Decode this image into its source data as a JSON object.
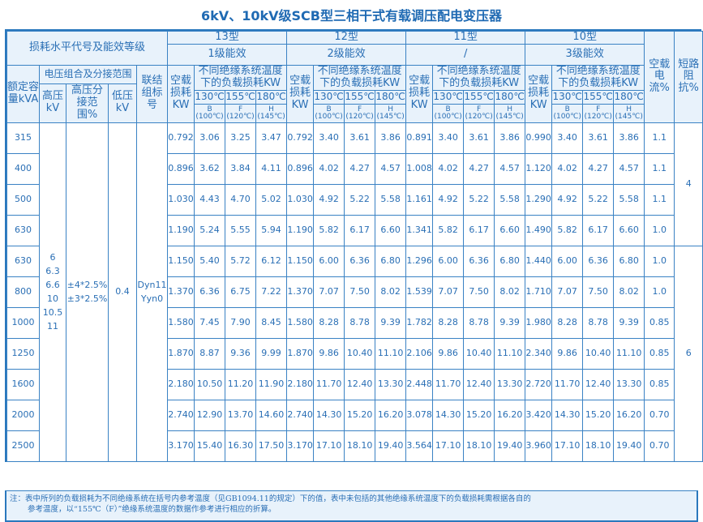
{
  "title": "6kV、10kV级SCB型三相干式有载调压配电变压器",
  "header": {
    "loss_level": "损耗水平代号及能效等级",
    "voltage_group": "电压组合及分接范围",
    "rated_capacity": "额定容量kVA",
    "hv": "高压kV",
    "tap_range": "高压分接范围%",
    "lv": "低压kV",
    "vector_group": "联结组标号",
    "no_load_loss": "空载损耗KW",
    "load_loss": "不同绝缘系统温度下的负载损耗KW",
    "temps": [
      "130℃",
      "155℃",
      "180℃"
    ],
    "classes": [
      {
        "cls": "B",
        "ref": "(100℃)"
      },
      {
        "cls": "F",
        "ref": "(120℃)"
      },
      {
        "cls": "H",
        "ref": "(145℃)"
      }
    ],
    "no_load_current": "空载电流%",
    "impedance": "短路阻抗%"
  },
  "types": [
    {
      "name": "13型",
      "grade": "1级能效"
    },
    {
      "name": "12型",
      "grade": "2级能效"
    },
    {
      "name": "11型",
      "grade": "/"
    },
    {
      "name": "10型",
      "grade": "3级能效"
    }
  ],
  "shared": {
    "hv": "6\n6.3\n6.6\n10\n10.5\n11",
    "taps": "±4*2.5%\n±3*2.5%",
    "lv": "0.4",
    "vector": "Dyn11\nYyn0",
    "impedance_groups": [
      {
        "value": "4",
        "rows": 4
      },
      {
        "value": "6",
        "rows": 7
      }
    ]
  },
  "rows": [
    {
      "kva": "315",
      "t": [
        [
          "0.792",
          "3.06",
          "3.25",
          "3.47"
        ],
        [
          "0.792",
          "3.40",
          "3.61",
          "3.86"
        ],
        [
          "0.891",
          "3.40",
          "3.61",
          "3.86"
        ],
        [
          "0.990",
          "3.40",
          "3.61",
          "3.86"
        ]
      ],
      "current": "1.1"
    },
    {
      "kva": "400",
      "t": [
        [
          "0.896",
          "3.62",
          "3.84",
          "4.11"
        ],
        [
          "0.896",
          "4.02",
          "4.27",
          "4.57"
        ],
        [
          "1.008",
          "4.02",
          "4.27",
          "4.57"
        ],
        [
          "1.120",
          "4.02",
          "4.27",
          "4.57"
        ]
      ],
      "current": "1.1"
    },
    {
      "kva": "500",
      "t": [
        [
          "1.030",
          "4.43",
          "4.70",
          "5.02"
        ],
        [
          "1.030",
          "4.92",
          "5.22",
          "5.58"
        ],
        [
          "1.161",
          "4.92",
          "5.22",
          "5.58"
        ],
        [
          "1.290",
          "4.92",
          "5.22",
          "5.58"
        ]
      ],
      "current": "1.1"
    },
    {
      "kva": "630",
      "t": [
        [
          "1.190",
          "5.24",
          "5.55",
          "5.94"
        ],
        [
          "1.190",
          "5.82",
          "6.17",
          "6.60"
        ],
        [
          "1.341",
          "5.82",
          "6.17",
          "6.60"
        ],
        [
          "1.490",
          "5.82",
          "6.17",
          "6.60"
        ]
      ],
      "current": "1.0"
    },
    {
      "kva": "630",
      "t": [
        [
          "1.150",
          "5.40",
          "5.72",
          "6.12"
        ],
        [
          "1.150",
          "6.00",
          "6.36",
          "6.80"
        ],
        [
          "1.296",
          "6.00",
          "6.36",
          "6.80"
        ],
        [
          "1.440",
          "6.00",
          "6.36",
          "6.80"
        ]
      ],
      "current": "1.0"
    },
    {
      "kva": "800",
      "t": [
        [
          "1.370",
          "6.36",
          "6.75",
          "7.22"
        ],
        [
          "1.370",
          "7.07",
          "7.50",
          "8.02"
        ],
        [
          "1.539",
          "7.07",
          "7.50",
          "8.02"
        ],
        [
          "1.710",
          "7.07",
          "7.50",
          "8.02"
        ]
      ],
      "current": "1.0"
    },
    {
      "kva": "1000",
      "t": [
        [
          "1.580",
          "7.45",
          "7.90",
          "8.45"
        ],
        [
          "1.580",
          "8.28",
          "8.78",
          "9.39"
        ],
        [
          "1.782",
          "8.28",
          "8.78",
          "9.39"
        ],
        [
          "1.980",
          "8.28",
          "8.78",
          "9.39"
        ]
      ],
      "current": "0.85"
    },
    {
      "kva": "1250",
      "t": [
        [
          "1.870",
          "8.87",
          "9.36",
          "9.99"
        ],
        [
          "1.870",
          "9.86",
          "10.40",
          "11.10"
        ],
        [
          "2.106",
          "9.86",
          "10.40",
          "11.10"
        ],
        [
          "2.340",
          "9.86",
          "10.40",
          "11.10"
        ]
      ],
      "current": "0.85"
    },
    {
      "kva": "1600",
      "t": [
        [
          "2.180",
          "10.50",
          "11.20",
          "11.90"
        ],
        [
          "2.180",
          "11.70",
          "12.40",
          "13.30"
        ],
        [
          "2.448",
          "11.70",
          "12.40",
          "13.30"
        ],
        [
          "2.720",
          "11.70",
          "12.40",
          "13.30"
        ]
      ],
      "current": "0.85"
    },
    {
      "kva": "2000",
      "t": [
        [
          "2.740",
          "12.90",
          "13.70",
          "14.60"
        ],
        [
          "2.740",
          "14.30",
          "15.20",
          "16.20"
        ],
        [
          "3.078",
          "14.30",
          "15.20",
          "16.20"
        ],
        [
          "3.420",
          "14.30",
          "15.20",
          "16.20"
        ]
      ],
      "current": "0.70"
    },
    {
      "kva": "2500",
      "t": [
        [
          "3.170",
          "15.40",
          "16.30",
          "17.50"
        ],
        [
          "3.170",
          "17.10",
          "18.10",
          "19.40"
        ],
        [
          "3.564",
          "17.10",
          "18.10",
          "19.40"
        ],
        [
          "3.960",
          "17.10",
          "18.10",
          "19.40"
        ]
      ],
      "current": "0.70"
    }
  ],
  "note": {
    "line1": "注：表中所列的负载损耗为不同绝缘系统在括号内参考温度（见GB1094.11的规定）下的值，表中未包括的其他绝缘系统温度下的负载损耗需根据各自的",
    "line2": "参考温度，以“155℃（F）”绝缘系统温度的数据作参考进行相应的折算。"
  },
  "colors": {
    "line": "#2a78bd",
    "text": "#2a6fb5",
    "header_bg": "#e8f2fb"
  }
}
